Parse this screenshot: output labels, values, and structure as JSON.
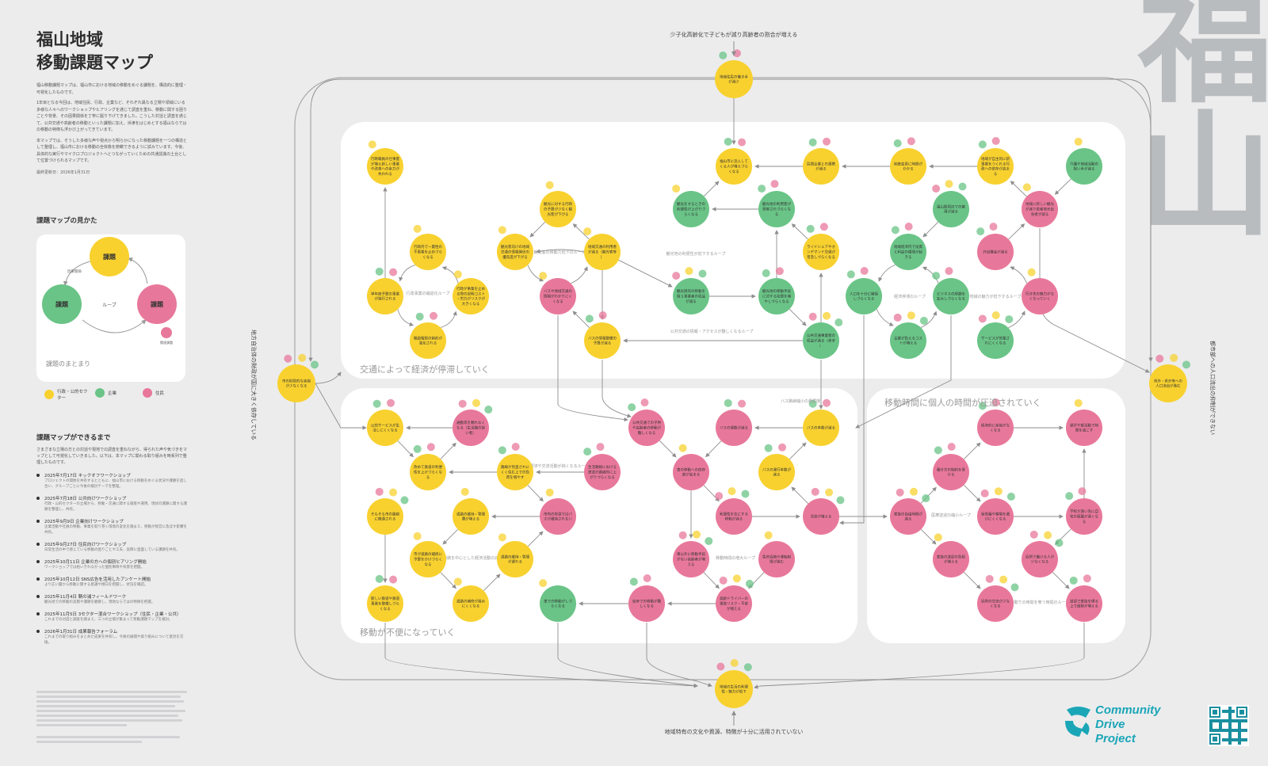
{
  "sidebar": {
    "title_line1": "福山地域",
    "title_line2": "移動課題マップ",
    "intro_p1": "福山移動課題マップは、福山市における地域の移動をめぐる課題を、構造的に整理・可視化したものです。",
    "intro_p2": "1年目となる今回は、地域住民、行政、企業など、それぞれ異なる立場や領域にいる多様な人々へのワークショップやヒアリングを通じて調査を重ね、移動に関する困りごとや背景、その因果関係を丁寧に掘り下げてきました。こうした対話と調査を通じて、公共交通や高齢者の移動といった課題に加え、浜津をはじめとする福山ならではの移動の特徴も浮かび上がってきています。",
    "intro_p3": "本マップでは、そうした多様な声や視点から明らかになった移動課題を一つの構造として整理し、福山市における移動の全体像を俯瞰できるように試みています。今後、具体的な実行やマイクロプロジェクトへとつながっていくための共通認識の土台として位置づけられるマップです。",
    "updated": "最終更新日：2026年1月31日",
    "guide_heading": "課題マップの見かた",
    "timeline_heading": "課題マップができるまで",
    "timeline_intro": "さまざまな立場の方との対話や現地での調査を重ねながら、得られた声や気づきをマップとして可視化していきました。以下は、本マップに関わる取り組みを時系列で整理したものです。"
  },
  "guide": {
    "node_top": "課題",
    "node_left": "課題",
    "node_right": "課題",
    "loop": "ループ",
    "arrow_label": "因果関係",
    "badge": "関連課題",
    "group": "課題のまとまり"
  },
  "legend": [
    {
      "label": "行政・公的セクター",
      "color": "#f8d12f"
    },
    {
      "label": "企業",
      "color": "#6ac487"
    },
    {
      "label": "住民",
      "color": "#e8789b"
    }
  ],
  "timeline": [
    {
      "title": "2025年7月17日 キックオフワークショップ",
      "desc": "プロジェクトの開始を共有するとともに、福山市における移動をめぐる状況や課題を話し合い、グループごとに今後の検討テーマを整理。"
    },
    {
      "title": "2025年7月18日 公共向けワークショップ",
      "desc": "行政・公的セクターの立場から、移動・交通に関する施策や運用、現状の課題に関する課題を整理し、共有。"
    },
    {
      "title": "2025年9月9日 企業向けワークショップ",
      "desc": "企業活動や社員の移動、事業を取り巻く環境の変化を踏まえ、移動が経営に及ぼす影響を共有。"
    },
    {
      "title": "2025年9月27日 住民向けワークショップ",
      "desc": "日常生活の中で感じている移動の困りごとや工夫、実際に直面している課題を共有。"
    },
    {
      "title": "2025年10月11日 企業の方への個別ヒアリング開始",
      "desc": "ワークショップでは拾いきれなかった個別事情や背景を把握。"
    },
    {
      "title": "2025年10月12日 SNS広告を活用したアンケート開始",
      "desc": "より広い層から移動に関する意識や傾向を把握し、状況を確認。"
    },
    {
      "title": "2025年11月4日 鞆の浦フィールドワーク",
      "desc": "観光地での移動の実態や課題を観察し、現地ならではの特徴を把握。"
    },
    {
      "title": "2025年11月5日 3セクター混合ワークショップ（住民・企業・公共）",
      "desc": "これまでの対話と調査を踏まえ、三つの立場が集まって移動課題マップを検討。"
    },
    {
      "title": "2026年1月31日 成果報告フォーラム",
      "desc": "これまでの取り組みをまとめた成果を共有し、今後の展開や取り組みについて意見を交換。"
    }
  ],
  "side_title": [
    "福",
    "山"
  ],
  "external": {
    "top_label": "少子化高齢化で子どもが減り高齢者の割合が増える",
    "bottom_label": "地域特有の文化や資源、特徴が十分に活用されていない",
    "left_label": "地方自治体の財政が国に大きく依存している",
    "right_label": "都市部への人口流出の抑制ができない",
    "top_node": "地域住民の働き手が減少",
    "bottom_node": "地域の生活の利便性・魅力が低下",
    "left_node": "市の財政的な余裕が少なくなる",
    "right_node": "県外・県外等への人口流出が進む"
  },
  "groups": {
    "top": "交通によって経済が停滞していく",
    "bottom_left": "移動が不便になっていく",
    "bottom_right": "移動時間に個人の時間が圧迫されていく"
  },
  "loops": {
    "l1": "行政事業の縮退化ループ",
    "l2": "観光客の移動力低下のループ",
    "l3": "観光地の利便性が低下するループ",
    "l4": "経済停滞のループ",
    "l5": "地域の魅力が低下するループ",
    "l6": "公共交通の情報・アクセスが難しくなるループ",
    "l7": "経済や交流活動が鈍くなるループ",
    "l8": "バス路線縮小の悪循環",
    "l9": "道路を中心とした経済活動の減少ループ",
    "l10": "移動時間の増大ループ",
    "l11": "医療送迎の縮小ループ",
    "l12": "移動での時間を奪う時間のループ"
  },
  "nodes": {
    "n01": "行政職員の仕事量が増え新しい事業や改善への余力が失われる",
    "n02": "観光に対する行政の予算が少なく観光客が下がる",
    "n03": "行政内で一貫性の不事業を止めづらくなる",
    "n04": "単年度予算の事業が進行される",
    "n05": "行政が事業を止める際の説明コスト・労力がリスクが大きくなる",
    "n06": "職員権限の制約が強化される",
    "n07": "観光客向けの地域交通の情報発信の優先度が下がる",
    "n08": "バスや地域交通の情報がわかりにくくなる",
    "n09": "地域交通の利用者が減る（観光客等）",
    "n10": "バスの情報整備の予算が減る",
    "n11": "福山市に流入してくる人が増えづらくなる",
    "n12": "観光をするときの利便性が上がりづらくなる",
    "n13": "観光地の利用客が受容されづらくなる",
    "n14": "民間企業との連携が減る",
    "n15": "ライドシェアやオンデマンド交通が普及しづらくなる",
    "n16": "観光目的の移動を担う事業者の収益が減る",
    "n17": "観光地の移動手段に対する投資を増やしづらくなる",
    "n18": "公共交通事業者の収益が減る（赤字）",
    "n19": "制度変更に時間がかかる",
    "n20": "福山駅周辺での雇用が減る",
    "n21": "地域経済内で投資と利益の循環が起きる",
    "n22": "人口を十分に確保しづらくなる",
    "n23": "ビジネスの経験を拡大しづらくなる",
    "n24": "企業が負えるコストが増える",
    "n25": "地域が自主的に新事業をつくれる行政への依存が高まる",
    "n26": "地域に新しい観光が減り若者地元出身者が減る",
    "n27": "外出機会が減る",
    "n28": "行き先の魅力がなくなっていく",
    "n29": "サービスが営業されにくくなる",
    "n30": "介護や地域活動の担い手が減る",
    "n31": "公的サービスが生活しにくくなる",
    "n32": "通勤等を頼れなくなる（生活圏の狭い者）",
    "n33": "改めて鉄道の利便性を上げづらくなる",
    "n34": "路線が見直されにくく住む上での負荷を増やす",
    "n35": "生活路線における鉄道が路線的に上がりづらくなる",
    "n36": "そもそも市の路線に精通される",
    "n37": "道路の維持・管理費が増える",
    "n38": "市内の財源ではバスが維持されない",
    "n39": "市が道路の補修に予算をかけづらくなる",
    "n40": "道路の維持・管理が遅れる",
    "n41": "新しい鉄道や鉄道事業を整備しづらくなる",
    "n42": "道路の補修が進みにくくなる",
    "n43": "車での移動がしづらくなる",
    "n44": "公共交通での子供や高齢者の移動が難しくなる",
    "n45": "バスの便数が減る",
    "n46": "バスの本数が減る",
    "n47": "バスの運行本数が減る",
    "n48": "車の移動への依存度が高まる",
    "n49": "利便性を気にする移動が減る",
    "n50": "渋滞が増える",
    "n51": "車以外に移動手段がない高齢者が増える",
    "n52": "免許返納や運転制限が進む",
    "n53": "高齢ドライバーの事故リスク・不安が増える",
    "n54": "徒歩での移動が難しくなる",
    "n55": "経済的に余裕がなくなる",
    "n56": "通学や部活動で時間を過ごす",
    "n57": "働き方の制約を受ける",
    "n58": "家族の自由時間が減る",
    "n59": "保育園や職場を選びにくくなる",
    "n60": "家族の送迎の負担が増える",
    "n61": "近所で働ける人が少なくなる",
    "n62": "学校が遠い為に自宅の距離が遠くなる",
    "n63": "近所の交流が少なくなる",
    "n64": "送迎で家族を縛る上で困窮が増える"
  },
  "brand": {
    "line1": "Community",
    "line2": "Drive",
    "line3": "Project"
  }
}
